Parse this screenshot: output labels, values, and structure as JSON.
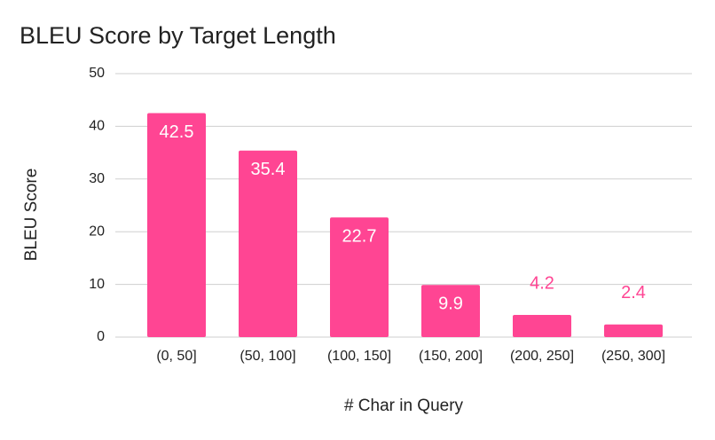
{
  "chart_data": {
    "type": "bar",
    "title": "BLEU Score by Target Length",
    "x_label": "# Char in Query",
    "y_label": "BLEU Score",
    "categories": [
      "(0, 50]",
      "(50, 100]",
      "(100, 150]",
      "(150, 200]",
      "(200, 250]",
      "(250, 300]"
    ],
    "values": [
      42.5,
      35.4,
      22.7,
      9.9,
      4.2,
      2.4
    ],
    "color": "#ff4593",
    "ylim": [
      0,
      50
    ],
    "yticks": [
      0,
      10,
      20,
      30,
      40,
      50
    ],
    "grid": true
  }
}
